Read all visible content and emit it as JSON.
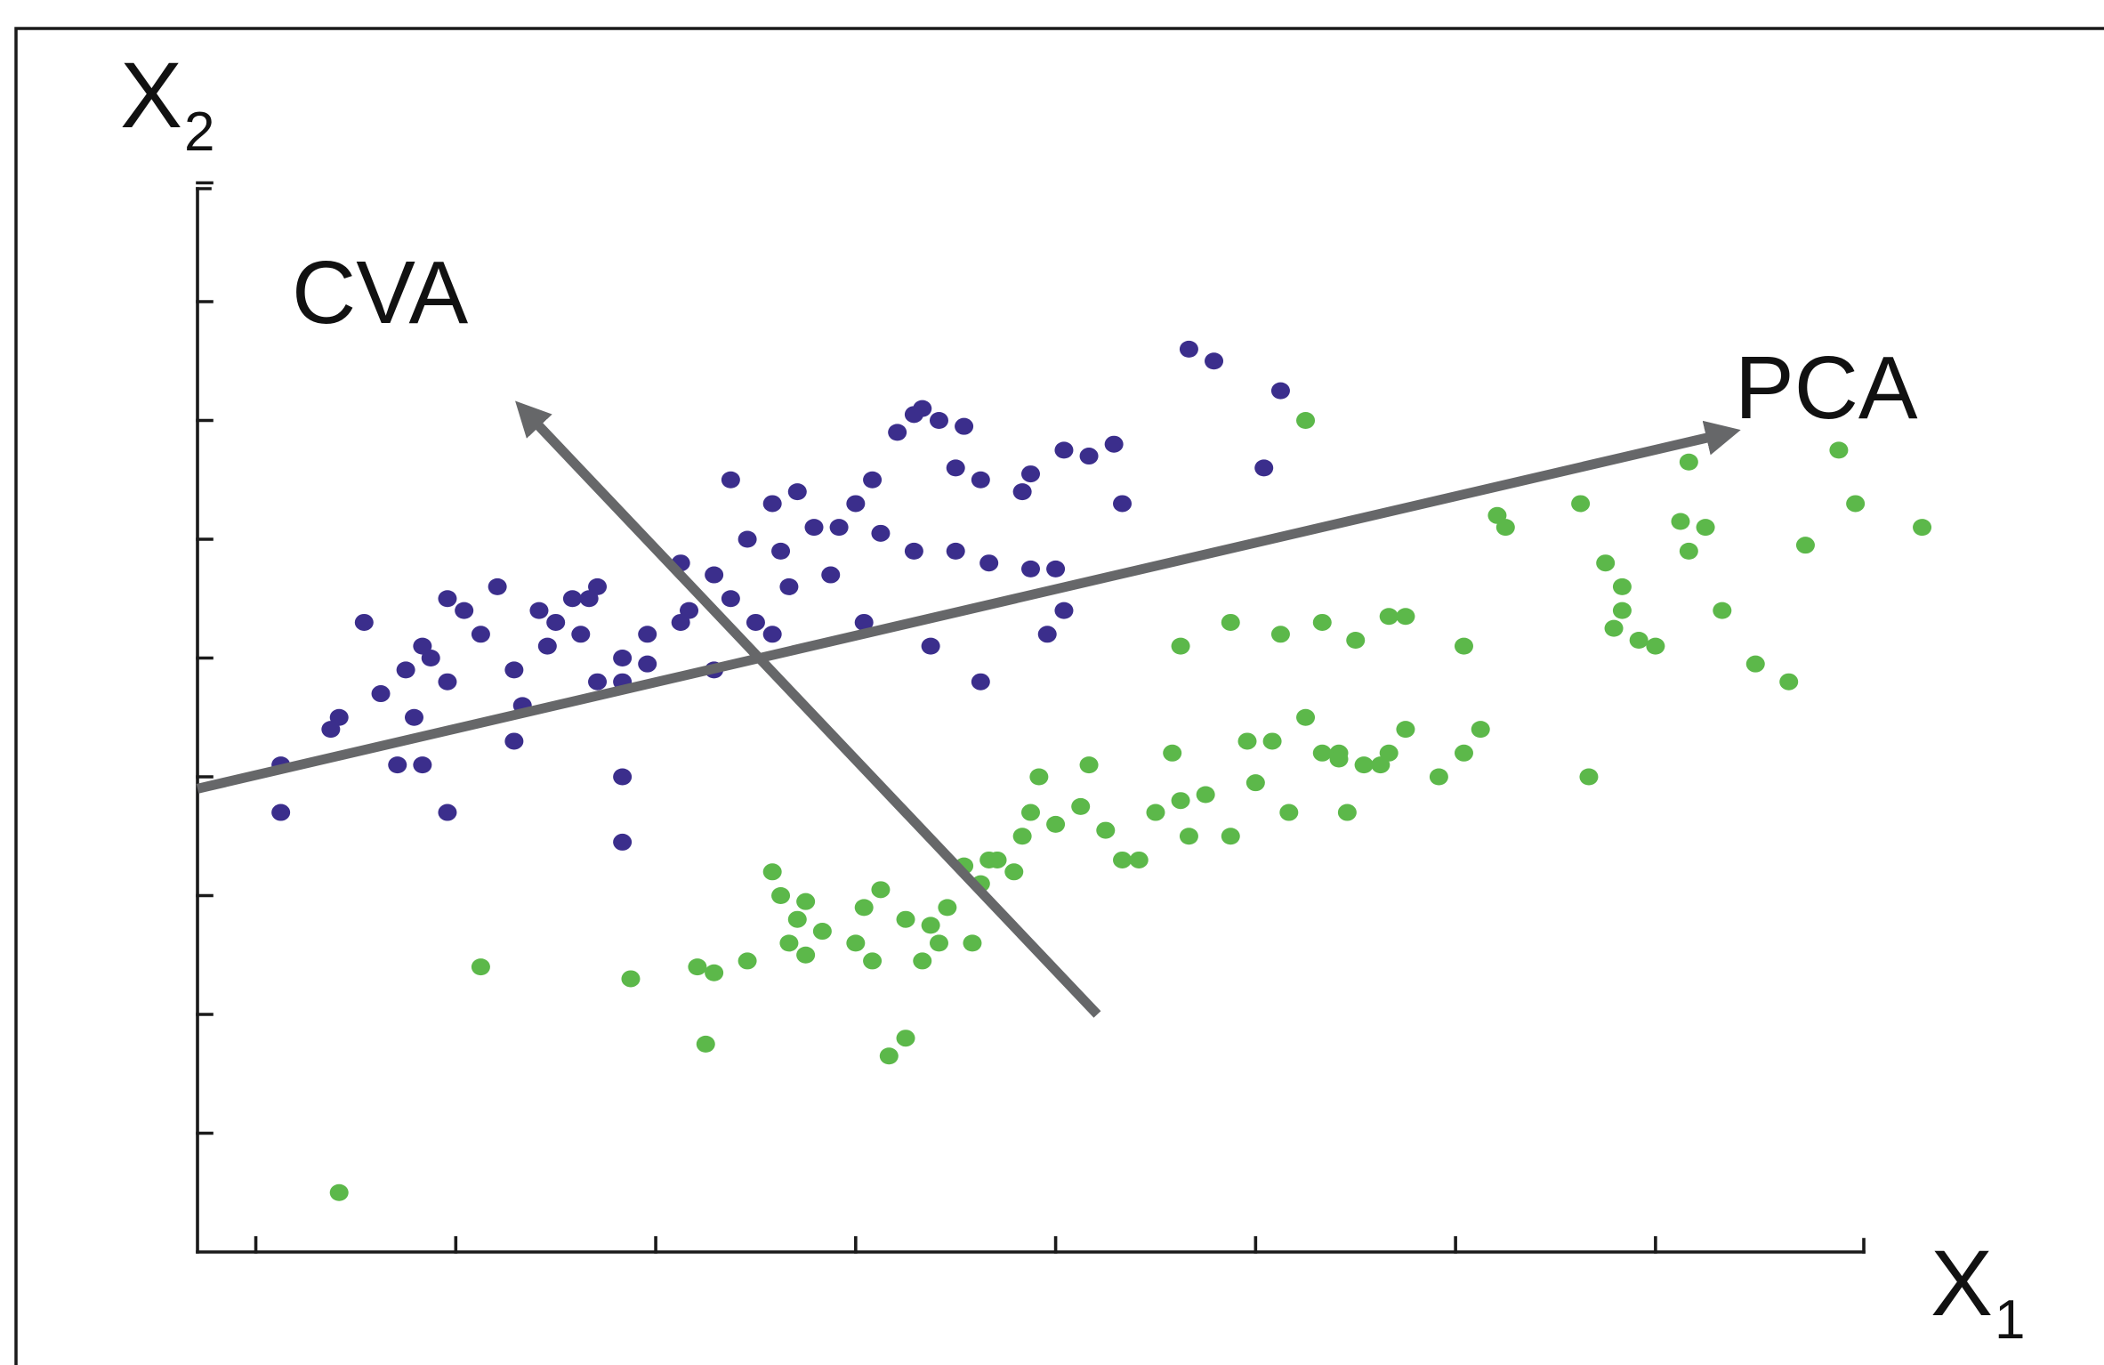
{
  "chart_data": {
    "type": "scatter",
    "xlabel": "X",
    "xlabel_sub": "1",
    "ylabel": "X",
    "ylabel_sub": "2",
    "xlim": [
      0,
      10
    ],
    "ylim": [
      0,
      10
    ],
    "xticks": [
      0.35,
      1.55,
      2.75,
      3.95,
      5.15,
      6.35,
      7.55,
      8.75
    ],
    "yticks": [
      1,
      2,
      3,
      4,
      5,
      6,
      7,
      8,
      9
    ],
    "grid": false,
    "legend": "none",
    "colors": {
      "series_a": "#3b2e8c",
      "series_b": "#5cb84a",
      "arrows": "#666769",
      "axes": "#1a1a1a"
    },
    "series": [
      {
        "values": [
          [
            0.5,
            3.7
          ],
          [
            0.85,
            4.5
          ],
          [
            0.5,
            4.1
          ],
          [
            0.8,
            4.4
          ],
          [
            1.1,
            4.7
          ],
          [
            1.2,
            4.1
          ],
          [
            1.35,
            4.1
          ],
          [
            1.3,
            4.5
          ],
          [
            1.5,
            4.8
          ],
          [
            1.35,
            5.1
          ],
          [
            1.6,
            5.4
          ],
          [
            1.9,
            4.9
          ],
          [
            1.9,
            4.3
          ],
          [
            1.5,
            3.7
          ],
          [
            1.95,
            4.6
          ],
          [
            1.25,
            4.9
          ],
          [
            1.0,
            5.3
          ],
          [
            1.4,
            5.0
          ],
          [
            1.7,
            5.2
          ],
          [
            1.8,
            5.6
          ],
          [
            2.05,
            5.4
          ],
          [
            2.1,
            5.1
          ],
          [
            2.15,
            5.3
          ],
          [
            2.25,
            5.5
          ],
          [
            2.4,
            5.6
          ],
          [
            2.3,
            5.2
          ],
          [
            2.4,
            4.8
          ],
          [
            2.55,
            4.8
          ],
          [
            2.55,
            5.0
          ],
          [
            2.7,
            5.2
          ],
          [
            2.9,
            5.3
          ],
          [
            2.95,
            5.4
          ],
          [
            3.1,
            4.9
          ],
          [
            2.7,
            4.95
          ],
          [
            2.9,
            5.8
          ],
          [
            3.1,
            5.7
          ],
          [
            3.3,
            6.0
          ],
          [
            3.2,
            6.5
          ],
          [
            3.45,
            6.3
          ],
          [
            3.6,
            6.4
          ],
          [
            3.85,
            6.1
          ],
          [
            4.05,
            6.5
          ],
          [
            4.2,
            6.9
          ],
          [
            4.3,
            7.05
          ],
          [
            4.35,
            7.1
          ],
          [
            4.45,
            7.0
          ],
          [
            4.6,
            6.95
          ],
          [
            4.55,
            6.6
          ],
          [
            4.7,
            6.5
          ],
          [
            4.95,
            6.4
          ],
          [
            5.0,
            6.55
          ],
          [
            5.2,
            6.75
          ],
          [
            5.35,
            6.7
          ],
          [
            5.55,
            6.3
          ],
          [
            5.5,
            6.8
          ],
          [
            5.95,
            7.6
          ],
          [
            6.1,
            7.5
          ],
          [
            6.5,
            7.25
          ],
          [
            6.4,
            6.6
          ],
          [
            2.55,
            4.0
          ],
          [
            2.55,
            3.45
          ],
          [
            3.2,
            5.5
          ],
          [
            3.5,
            5.9
          ],
          [
            3.7,
            6.1
          ],
          [
            3.95,
            6.3
          ],
          [
            4.1,
            6.05
          ],
          [
            4.3,
            5.9
          ],
          [
            4.55,
            5.9
          ],
          [
            4.75,
            5.8
          ],
          [
            5.0,
            5.75
          ],
          [
            5.15,
            5.75
          ],
          [
            5.2,
            5.4
          ],
          [
            5.1,
            5.2
          ],
          [
            4.7,
            4.8
          ],
          [
            4.4,
            5.1
          ],
          [
            4.0,
            5.3
          ],
          [
            3.8,
            5.7
          ],
          [
            3.55,
            5.6
          ],
          [
            3.35,
            5.3
          ],
          [
            3.45,
            5.2
          ],
          [
            2.35,
            5.5
          ],
          [
            1.5,
            5.5
          ]
        ],
        "color": "#3b2e8c"
      },
      {
        "values": [
          [
            0.85,
            0.5
          ],
          [
            1.7,
            2.4
          ],
          [
            2.6,
            2.3
          ],
          [
            3.0,
            2.4
          ],
          [
            3.1,
            2.35
          ],
          [
            3.05,
            1.75
          ],
          [
            3.3,
            2.45
          ],
          [
            3.45,
            3.2
          ],
          [
            3.5,
            3.0
          ],
          [
            3.6,
            2.8
          ],
          [
            3.55,
            2.6
          ],
          [
            3.65,
            2.95
          ],
          [
            3.75,
            2.7
          ],
          [
            3.65,
            2.5
          ],
          [
            3.95,
            2.6
          ],
          [
            4.0,
            2.9
          ],
          [
            4.05,
            2.45
          ],
          [
            4.1,
            3.05
          ],
          [
            4.25,
            2.8
          ],
          [
            4.4,
            2.75
          ],
          [
            4.35,
            2.45
          ],
          [
            4.45,
            2.6
          ],
          [
            4.5,
            2.9
          ],
          [
            4.65,
            2.6
          ],
          [
            4.6,
            3.25
          ],
          [
            4.7,
            3.1
          ],
          [
            4.8,
            3.3
          ],
          [
            4.9,
            3.2
          ],
          [
            4.95,
            3.5
          ],
          [
            5.0,
            3.7
          ],
          [
            5.05,
            4.0
          ],
          [
            5.15,
            3.6
          ],
          [
            5.3,
            3.75
          ],
          [
            5.35,
            4.1
          ],
          [
            5.45,
            3.55
          ],
          [
            5.55,
            3.3
          ],
          [
            5.65,
            3.3
          ],
          [
            5.75,
            3.7
          ],
          [
            5.85,
            4.2
          ],
          [
            5.9,
            3.8
          ],
          [
            5.95,
            3.5
          ],
          [
            6.05,
            3.85
          ],
          [
            6.2,
            3.5
          ],
          [
            6.3,
            4.3
          ],
          [
            6.35,
            3.95
          ],
          [
            6.45,
            4.3
          ],
          [
            6.55,
            3.7
          ],
          [
            6.65,
            4.5
          ],
          [
            6.75,
            4.2
          ],
          [
            6.85,
            4.2
          ],
          [
            6.9,
            3.7
          ],
          [
            7.0,
            4.1
          ],
          [
            7.1,
            4.1
          ],
          [
            7.15,
            4.2
          ],
          [
            7.25,
            4.4
          ],
          [
            7.45,
            4.0
          ],
          [
            7.6,
            4.2
          ],
          [
            7.7,
            4.4
          ],
          [
            5.9,
            5.1
          ],
          [
            6.2,
            5.3
          ],
          [
            6.5,
            5.2
          ],
          [
            6.75,
            5.3
          ],
          [
            6.95,
            5.15
          ],
          [
            7.15,
            5.35
          ],
          [
            7.25,
            5.35
          ],
          [
            7.6,
            5.1
          ],
          [
            7.8,
            6.2
          ],
          [
            7.85,
            6.1
          ],
          [
            8.3,
            6.3
          ],
          [
            8.45,
            5.8
          ],
          [
            8.55,
            5.6
          ],
          [
            8.55,
            5.4
          ],
          [
            8.5,
            5.25
          ],
          [
            8.65,
            5.15
          ],
          [
            8.75,
            5.1
          ],
          [
            8.9,
            6.15
          ],
          [
            8.95,
            5.9
          ],
          [
            9.05,
            6.1
          ],
          [
            9.15,
            5.4
          ],
          [
            9.35,
            4.95
          ],
          [
            9.55,
            4.8
          ],
          [
            9.65,
            5.95
          ],
          [
            9.85,
            6.75
          ],
          [
            8.35,
            4.0
          ],
          [
            8.95,
            6.65
          ],
          [
            9.95,
            6.3
          ],
          [
            6.65,
            7.0
          ],
          [
            10.35,
            6.1
          ],
          [
            6.85,
            4.15
          ],
          [
            4.75,
            3.3
          ],
          [
            4.25,
            1.8
          ],
          [
            4.15,
            1.65
          ]
        ],
        "color": "#5cb84a"
      }
    ],
    "annotations": [
      {
        "label": "CVA",
        "from": [
          5.4,
          2.0
        ],
        "to": [
          1.95,
          7.1
        ]
      },
      {
        "label": "PCA",
        "from": [
          0.0,
          3.9
        ],
        "to": [
          9.2,
          6.9
        ]
      }
    ]
  }
}
